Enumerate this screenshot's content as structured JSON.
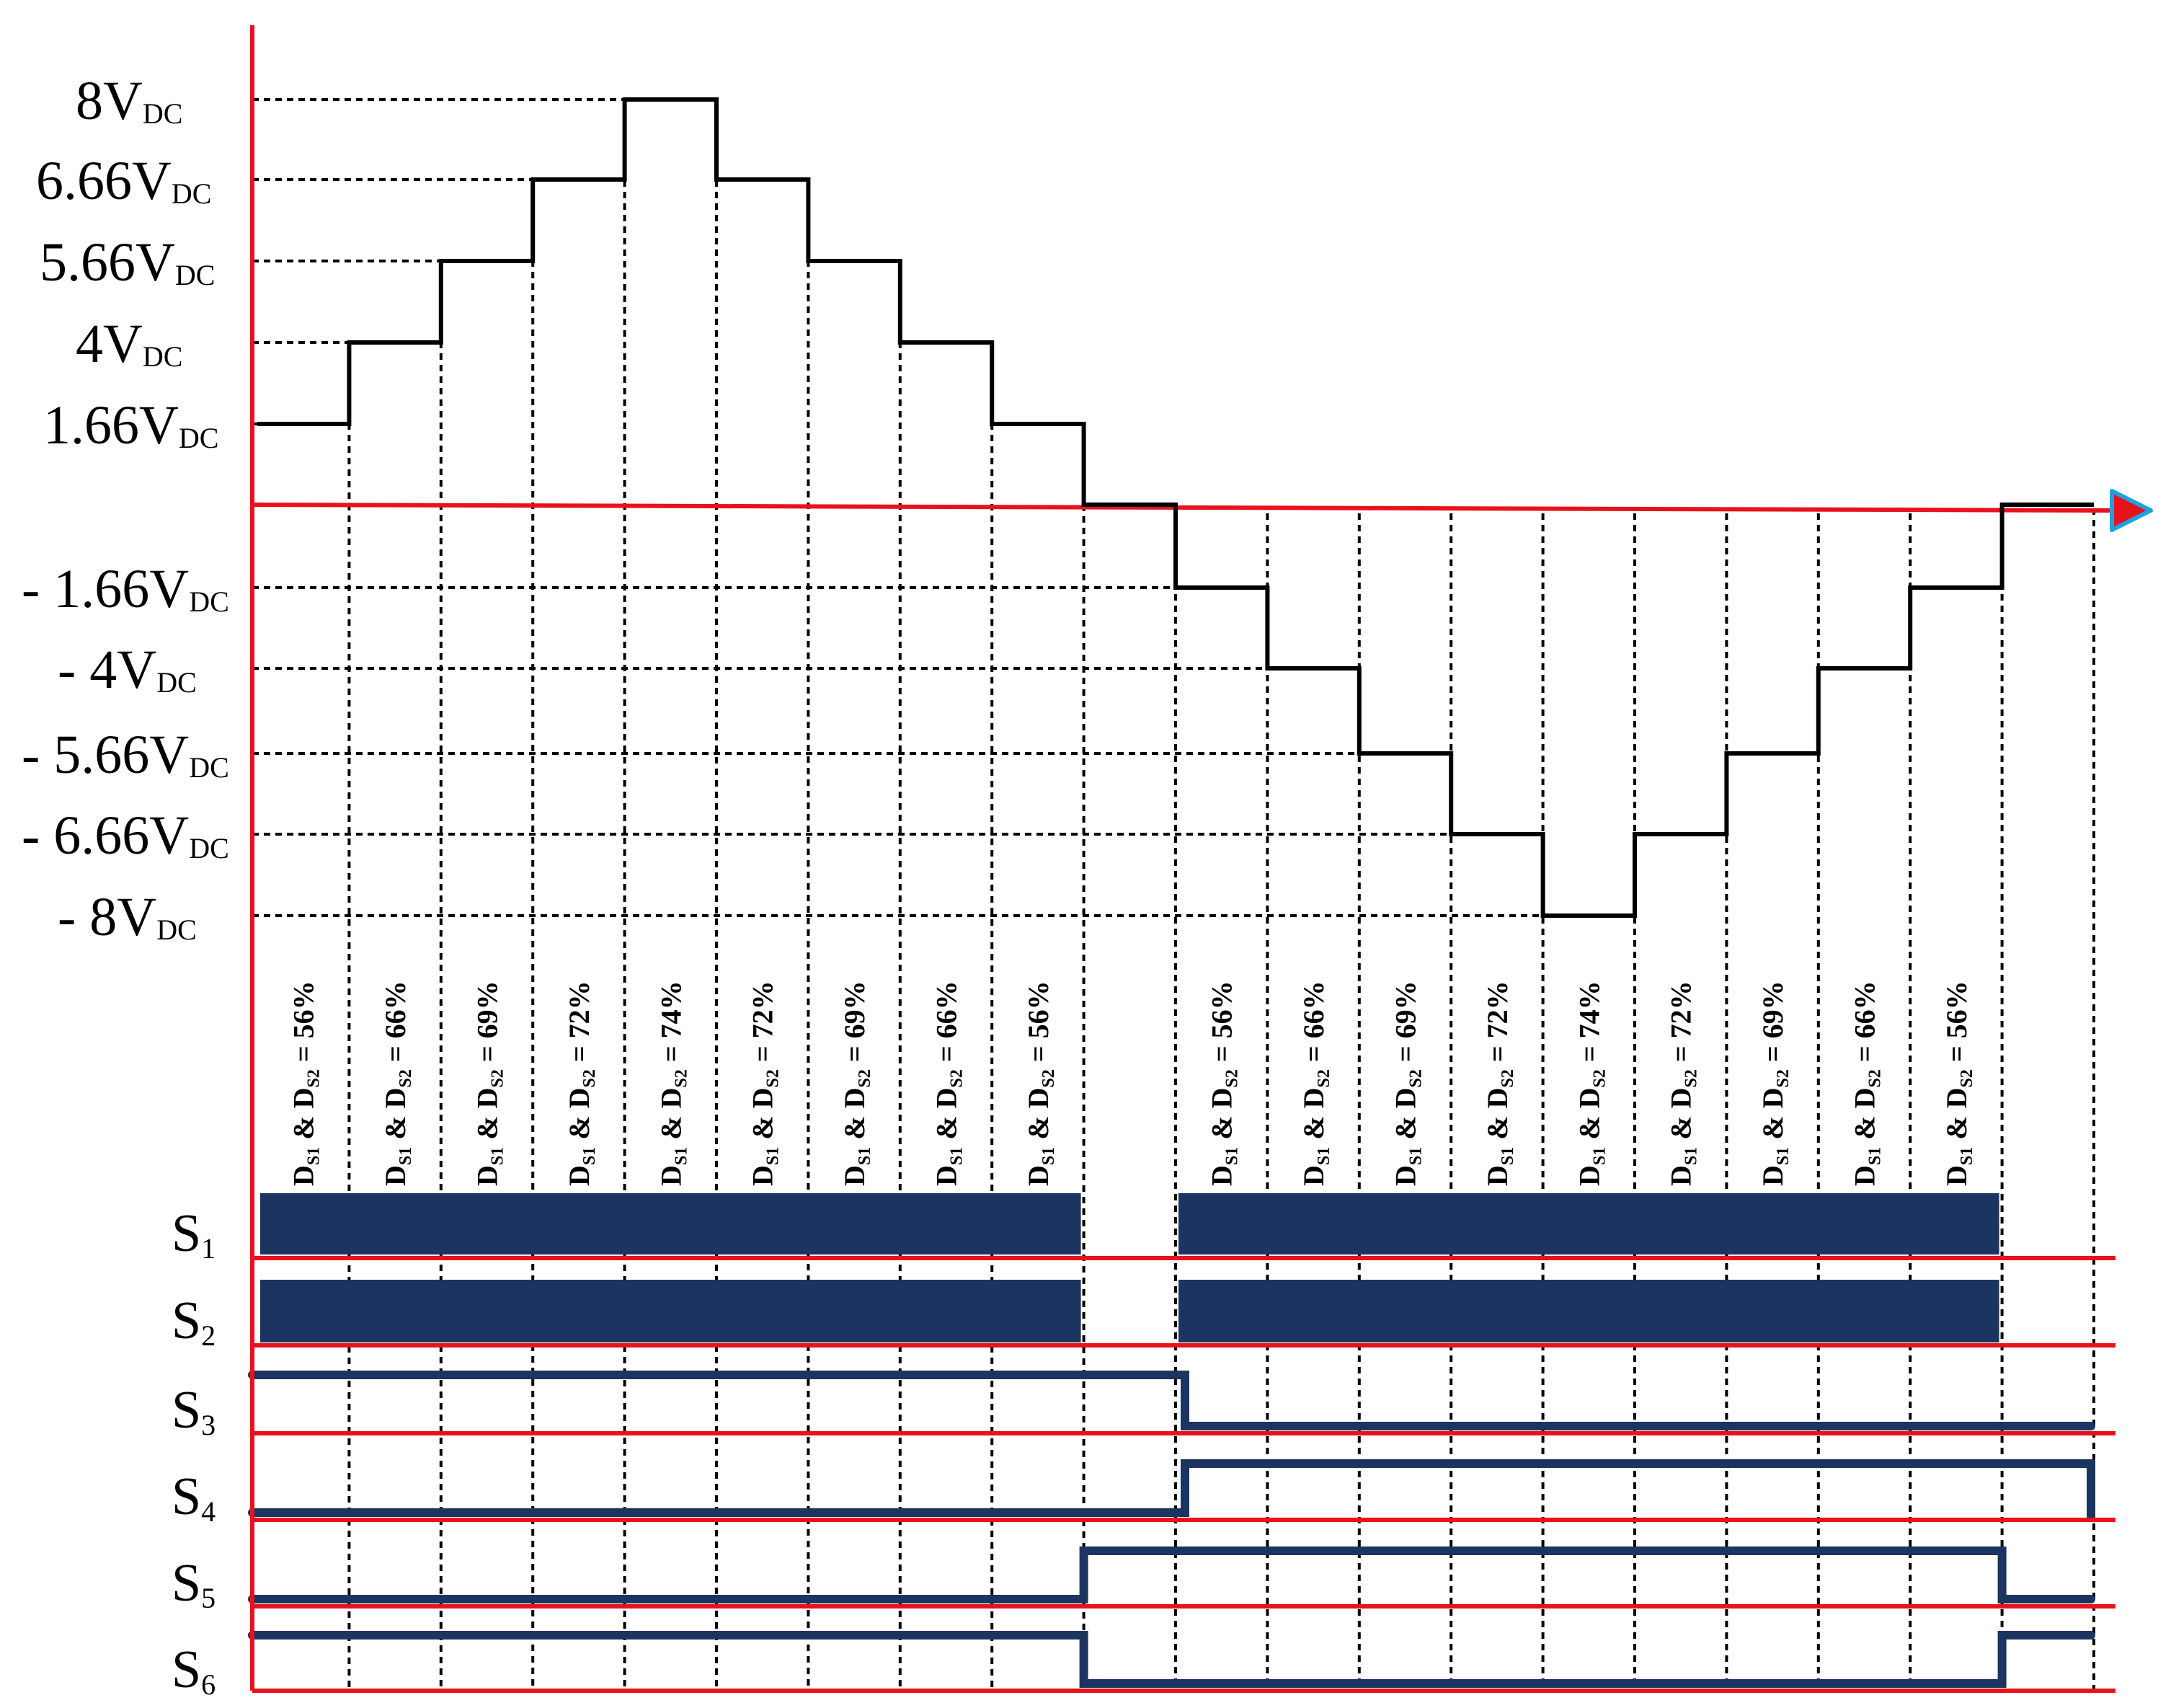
{
  "figure": {
    "y_levels": [
      {
        "value": 8,
        "pre": "",
        "main": "8V",
        "sub": "DC"
      },
      {
        "value": 6.66,
        "pre": "",
        "main": "6.66V",
        "sub": "DC"
      },
      {
        "value": 5.66,
        "pre": "",
        "main": "5.66V",
        "sub": "DC"
      },
      {
        "value": 4,
        "pre": "",
        "main": "4V",
        "sub": "DC"
      },
      {
        "value": 1.66,
        "pre": "",
        "main": "1.66V",
        "sub": "DC"
      },
      {
        "value": -1.66,
        "pre": "- ",
        "main": "1.66V",
        "sub": "DC"
      },
      {
        "value": -4,
        "pre": "- ",
        "main": "4V",
        "sub": "DC"
      },
      {
        "value": -5.66,
        "pre": "- ",
        "main": "5.66V",
        "sub": "DC"
      },
      {
        "value": -6.66,
        "pre": "- ",
        "main": "6.66V",
        "sub": "DC"
      },
      {
        "value": -8,
        "pre": "- ",
        "main": "8V",
        "sub": "DC"
      }
    ],
    "staircase": [
      1.66,
      4,
      5.66,
      6.66,
      8,
      6.66,
      5.66,
      4,
      1.66,
      0,
      -1.66,
      -4,
      -5.66,
      -6.66,
      -8,
      -6.66,
      -5.66,
      -4,
      -1.66,
      0
    ],
    "duty_cycles": [
      "56%",
      "66%",
      "69%",
      "72%",
      "74%",
      "72%",
      "69%",
      "66%",
      "56%",
      "",
      "56%",
      "66%",
      "69%",
      "72%",
      "74%",
      "72%",
      "69%",
      "66%",
      "56%",
      ""
    ],
    "duty_label": {
      "d": "D",
      "s1": "S1",
      "amp": " & ",
      "s2": "S2",
      "eq": " = "
    },
    "switches": [
      {
        "main": "S",
        "sub": "1",
        "kind": "pwm",
        "states": [
          1,
          1,
          1,
          1,
          1,
          1,
          1,
          1,
          1,
          0,
          1,
          1,
          1,
          1,
          1,
          1,
          1,
          1,
          1,
          0
        ]
      },
      {
        "main": "S",
        "sub": "2",
        "kind": "pwm",
        "states": [
          1,
          1,
          1,
          1,
          1,
          1,
          1,
          1,
          1,
          0,
          1,
          1,
          1,
          1,
          1,
          1,
          1,
          1,
          1,
          0
        ]
      },
      {
        "main": "S",
        "sub": "3",
        "kind": "level",
        "states": [
          1,
          1,
          1,
          1,
          1,
          1,
          1,
          1,
          1,
          1,
          0,
          0,
          0,
          0,
          0,
          0,
          0,
          0,
          0,
          0
        ]
      },
      {
        "main": "S",
        "sub": "4",
        "kind": "level",
        "states": [
          0,
          0,
          0,
          0,
          0,
          0,
          0,
          0,
          0,
          0,
          1,
          1,
          1,
          1,
          1,
          1,
          1,
          1,
          1,
          1
        ]
      },
      {
        "main": "S",
        "sub": "5",
        "kind": "level",
        "states": [
          0,
          0,
          0,
          0,
          0,
          0,
          0,
          0,
          0,
          1,
          1,
          1,
          1,
          1,
          1,
          1,
          1,
          1,
          1,
          0
        ]
      },
      {
        "main": "S",
        "sub": "6",
        "kind": "level",
        "states": [
          1,
          1,
          1,
          1,
          1,
          1,
          1,
          1,
          1,
          0,
          0,
          0,
          0,
          0,
          0,
          0,
          0,
          0,
          0,
          1
        ]
      }
    ],
    "colors": {
      "axis": "#e8121d",
      "signal": "#1c3560",
      "wave": "#000000",
      "arrow_fill": "#e8121d",
      "arrow_outline": "#1aa3e0"
    }
  }
}
